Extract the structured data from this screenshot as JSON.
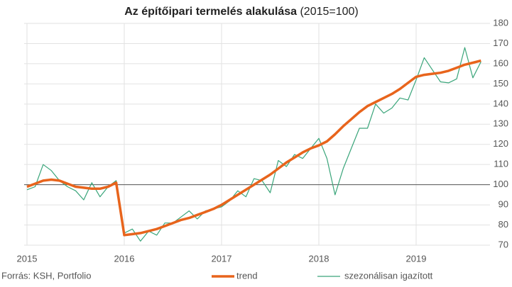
{
  "chart_data": {
    "type": "line",
    "title": "Az építőipari termelés alakulása",
    "title_note": "(2015=100)",
    "source": "Forrás: KSH, Portfolio",
    "categories": [
      "2015",
      null,
      null,
      null,
      null,
      null,
      null,
      null,
      null,
      null,
      null,
      null,
      "2016",
      null,
      null,
      null,
      null,
      null,
      null,
      null,
      null,
      null,
      null,
      null,
      "2017",
      null,
      null,
      null,
      null,
      null,
      null,
      null,
      null,
      null,
      null,
      null,
      "2018",
      null,
      null,
      null,
      null,
      null,
      null,
      null,
      null,
      null,
      null,
      null,
      "2019",
      null,
      null,
      null,
      null,
      null,
      null,
      null,
      null
    ],
    "series": [
      {
        "name": "trend",
        "color": "#e8641c",
        "width": 3.5,
        "values": [
          99,
          100.5,
          102,
          102.5,
          102,
          100.5,
          99,
          98.5,
          98,
          98,
          99,
          101,
          75,
          75.5,
          76,
          77,
          78,
          79.5,
          81,
          82.5,
          83.5,
          85,
          86.5,
          88,
          90,
          92.5,
          95,
          97.5,
          100,
          102.5,
          105,
          108,
          111,
          113.5,
          116,
          118,
          119.5,
          121.5,
          125,
          129,
          132.5,
          136,
          139,
          141,
          143,
          145,
          147.5,
          150.5,
          153.5,
          154.5,
          155,
          155.5,
          156.5,
          158,
          159.5,
          160.5,
          161.5
        ]
      },
      {
        "name": "szezonálisan igazított",
        "color": "#3aa57a",
        "width": 1.2,
        "values": [
          97.5,
          99,
          110,
          107,
          102,
          99,
          97,
          92.5,
          101,
          94,
          99,
          102,
          76,
          78,
          72,
          77,
          75,
          81,
          81,
          84,
          87,
          83,
          87,
          88,
          89,
          92,
          97,
          94,
          103,
          102,
          96,
          112,
          109,
          115,
          113,
          118,
          123,
          113,
          95,
          108,
          118,
          128,
          128,
          140,
          135.5,
          138,
          143,
          142,
          152,
          163,
          157,
          151,
          150.5,
          152.5,
          168,
          153,
          161
        ]
      }
    ],
    "ylim": [
      70,
      180
    ],
    "yticks": [
      70,
      80,
      90,
      100,
      110,
      120,
      130,
      140,
      150,
      160,
      170,
      180
    ],
    "reference_line": 100,
    "grid": true,
    "legend": "bottom"
  }
}
